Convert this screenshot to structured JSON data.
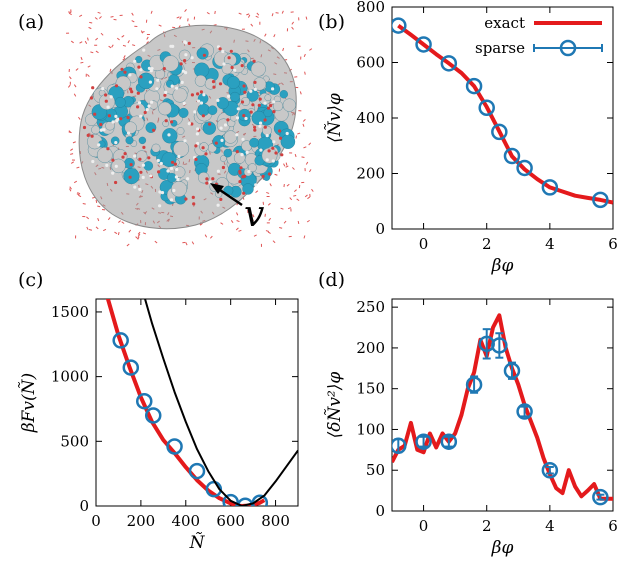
{
  "figure": {
    "panels": {
      "a": {
        "label": "(a)",
        "annotation": "v"
      },
      "b": {
        "label": "(b)"
      },
      "c": {
        "label": "(c)"
      },
      "d": {
        "label": "(d)"
      }
    },
    "colors": {
      "exact": "#e41a1c",
      "sparse": "#1f78b4",
      "parabola": "#000000",
      "protein_blue": "#2aa0c0",
      "protein_grey": "#c8c8c8",
      "envelope": "#9a9a9a",
      "water": "#e05555"
    }
  },
  "chart_data": [
    {
      "id": "b",
      "type": "line",
      "xlabel": "βφ",
      "ylabel": "⟨Ñv⟩φ",
      "xlim": [
        -1,
        6
      ],
      "ylim": [
        0,
        800
      ],
      "xticks": [
        0,
        2,
        4,
        6
      ],
      "yticks": [
        0,
        200,
        400,
        600,
        800
      ],
      "legend": {
        "position": "top-right",
        "entries": [
          "exact",
          "sparse"
        ]
      },
      "series": [
        {
          "name": "exact",
          "style": "line",
          "x": [
            -0.8,
            -0.4,
            0,
            0.4,
            0.8,
            1.2,
            1.6,
            2.0,
            2.4,
            2.8,
            3.2,
            3.6,
            4.0,
            4.4,
            4.8,
            5.2,
            5.6,
            6.0
          ],
          "y": [
            733,
            700,
            665,
            630,
            597,
            562,
            515,
            440,
            352,
            262,
            215,
            180,
            150,
            135,
            120,
            112,
            105,
            95
          ]
        },
        {
          "name": "sparse",
          "style": "markers",
          "x": [
            -0.8,
            0,
            0.8,
            1.6,
            2.0,
            2.4,
            2.8,
            3.2,
            4.0,
            5.6
          ],
          "y": [
            733,
            665,
            597,
            515,
            437,
            350,
            263,
            220,
            150,
            105
          ]
        }
      ]
    },
    {
      "id": "c",
      "type": "line",
      "xlabel": "Ñ",
      "ylabel": "βFv(Ñ)",
      "xlim": [
        0,
        900
      ],
      "ylim": [
        0,
        1600
      ],
      "xticks": [
        0,
        200,
        400,
        600,
        800
      ],
      "yticks": [
        0,
        500,
        1000,
        1500
      ],
      "series": [
        {
          "name": "exact",
          "style": "line",
          "x": [
            50,
            100,
            150,
            200,
            250,
            300,
            350,
            400,
            450,
            500,
            550,
            600,
            625,
            650,
            675,
            700,
            730,
            750
          ],
          "y": [
            1620,
            1320,
            1070,
            840,
            650,
            510,
            410,
            300,
            200,
            120,
            60,
            20,
            5,
            0,
            3,
            10,
            25,
            45
          ]
        },
        {
          "name": "sparse",
          "style": "markers",
          "x": [
            110,
            155,
            215,
            255,
            350,
            450,
            525,
            600,
            665,
            730
          ],
          "y": [
            1280,
            1070,
            810,
            700,
            460,
            270,
            130,
            30,
            2,
            25
          ]
        },
        {
          "name": "parabola",
          "style": "line",
          "x": [
            215,
            250,
            300,
            350,
            400,
            450,
            500,
            550,
            600,
            650,
            700,
            750,
            800,
            850,
            900
          ],
          "y": [
            1620,
            1410,
            1140,
            880,
            650,
            440,
            270,
            130,
            40,
            0,
            20,
            80,
            190,
            310,
            430
          ]
        }
      ]
    },
    {
      "id": "d",
      "type": "line",
      "xlabel": "βφ",
      "ylabel": "⟨δÑv²⟩φ",
      "xlim": [
        -1,
        6
      ],
      "ylim": [
        0,
        260
      ],
      "xticks": [
        0,
        2,
        4,
        6
      ],
      "yticks": [
        0,
        50,
        100,
        150,
        200,
        250
      ],
      "series": [
        {
          "name": "exact",
          "style": "line",
          "x": [
            -1.0,
            -0.8,
            -0.6,
            -0.4,
            -0.2,
            0,
            0.2,
            0.4,
            0.6,
            0.8,
            1.0,
            1.2,
            1.4,
            1.6,
            1.8,
            2.0,
            2.2,
            2.4,
            2.6,
            2.8,
            3.0,
            3.2,
            3.4,
            3.6,
            3.8,
            4.0,
            4.2,
            4.4,
            4.6,
            4.8,
            5.0,
            5.2,
            5.4,
            5.6,
            5.8,
            6.0
          ],
          "y": [
            60,
            75,
            80,
            108,
            75,
            72,
            95,
            78,
            95,
            85,
            95,
            118,
            150,
            170,
            210,
            190,
            225,
            240,
            200,
            175,
            155,
            130,
            110,
            90,
            65,
            45,
            28,
            22,
            50,
            30,
            18,
            25,
            33,
            15,
            15,
            15
          ]
        },
        {
          "name": "sparse",
          "style": "markers",
          "x": [
            -0.8,
            0,
            0.8,
            1.6,
            2.0,
            2.4,
            2.8,
            3.2,
            4.0,
            5.6
          ],
          "y": [
            80,
            85,
            85,
            155,
            205,
            203,
            172,
            122,
            50,
            17
          ],
          "err": [
            8,
            6,
            6,
            10,
            18,
            15,
            10,
            6,
            4,
            3
          ]
        }
      ]
    }
  ]
}
